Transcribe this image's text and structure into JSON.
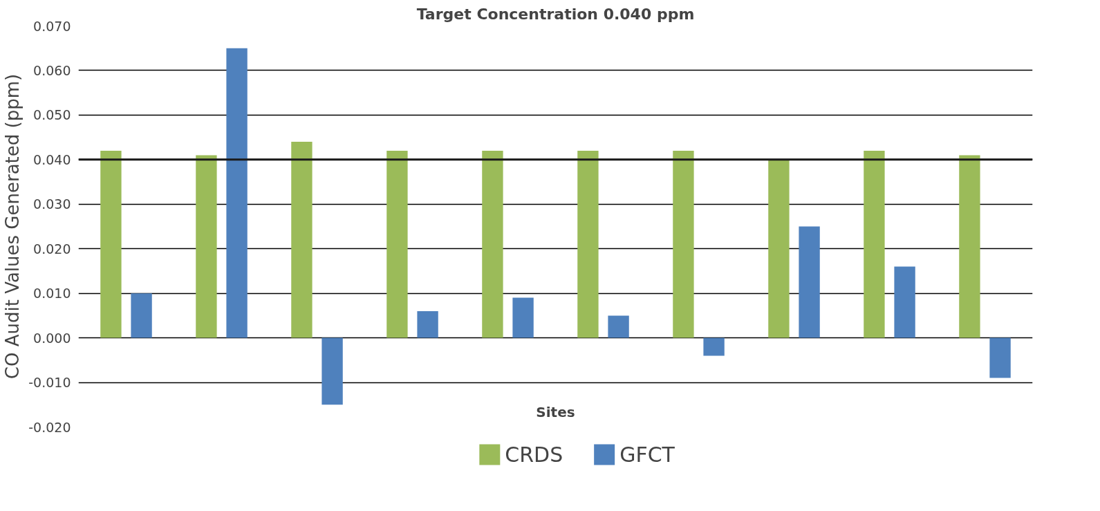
{
  "chart_data": {
    "type": "bar",
    "title": "Target Concentration 0.040 ppm",
    "xlabel": "Sites",
    "ylabel": "CO Audit Values Generated (ppm)",
    "categories": [
      null,
      null,
      null,
      null,
      null,
      null,
      null,
      null,
      null,
      null
    ],
    "series": [
      {
        "name": "CRDS",
        "color": "#9bbb59",
        "values": [
          0.042,
          0.041,
          0.044,
          0.042,
          0.042,
          0.042,
          0.042,
          0.04,
          0.042,
          0.041
        ]
      },
      {
        "name": "GFCT",
        "color": "#4f81bd",
        "values": [
          0.01,
          0.065,
          -0.015,
          0.006,
          0.009,
          0.005,
          -0.004,
          0.025,
          0.016,
          -0.009
        ]
      }
    ],
    "ylim": [
      -0.02,
      0.07
    ],
    "yticks": [
      {
        "value": -0.02,
        "label": "-0.020"
      },
      {
        "value": -0.01,
        "label": "-0.010"
      },
      {
        "value": 0,
        "label": "0.000"
      },
      {
        "value": 0.01,
        "label": "0.010"
      },
      {
        "value": 0.02,
        "label": "0.020"
      },
      {
        "value": 0.03,
        "label": "0.030"
      },
      {
        "value": 0.04,
        "label": "0.040"
      },
      {
        "value": 0.05,
        "label": "0.050"
      },
      {
        "value": 0.06,
        "label": "0.060"
      },
      {
        "value": 0.07,
        "label": "0.070"
      }
    ],
    "ref_lines": [
      {
        "axis": "y",
        "value": 0.04,
        "color": "#1a1a1a"
      }
    ],
    "grid": "y",
    "legend": "bottom"
  }
}
